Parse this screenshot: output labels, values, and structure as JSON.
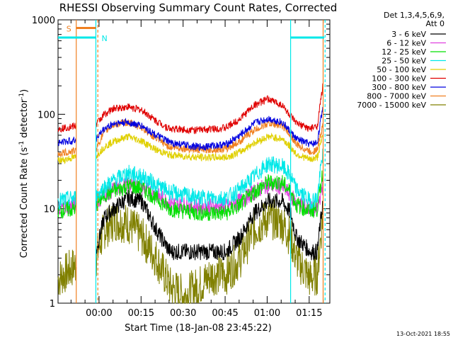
{
  "chart_data": {
    "type": "line",
    "title": "RHESSI Observing Summary Count Rates, Corrected",
    "xlabel": "Start Time (18-Jan-08 23:45:22)",
    "ylabel": "Corrected Count Rate (s",
    "ylabel_sup": "-1",
    "ylabel_tail": " detector",
    "ylabel_tail_sup": "-1",
    "ylabel_close": ")",
    "y_scale": "log",
    "ylim": [
      1,
      1000
    ],
    "y_ticks": [
      {
        "value": 1,
        "label": "1"
      },
      {
        "value": 10,
        "label": "10"
      },
      {
        "value": 100,
        "label": "100"
      },
      {
        "value": 1000,
        "label": "1000"
      }
    ],
    "x_unit": "minutes after 23:45:22",
    "xlim": [
      0,
      97
    ],
    "x_ticks": [
      {
        "value": 14.63,
        "label": "00:00"
      },
      {
        "value": 29.63,
        "label": "00:15"
      },
      {
        "value": 44.63,
        "label": "00:30"
      },
      {
        "value": 59.63,
        "label": "00:45"
      },
      {
        "value": 74.63,
        "label": "01:00"
      },
      {
        "value": 89.63,
        "label": "01:15"
      }
    ],
    "legend": {
      "header_line1": "Det 1,3,4,5,6,9,",
      "header_line2": "Att 0",
      "placement": "right"
    },
    "series": [
      {
        "name": "3 - 6 keV",
        "color": "#000000",
        "points": [
          [
            13.5,
            3.5
          ],
          [
            16.5,
            8
          ],
          [
            20,
            10
          ],
          [
            25,
            13
          ],
          [
            30,
            12
          ],
          [
            35,
            6
          ],
          [
            40,
            3.5
          ],
          [
            50,
            3.5
          ],
          [
            60,
            3.5
          ],
          [
            65,
            5
          ],
          [
            70,
            9
          ],
          [
            75,
            12
          ],
          [
            80,
            12
          ],
          [
            83,
            9
          ],
          [
            85,
            5
          ],
          [
            90,
            3.5
          ],
          [
            92.5,
            3.5
          ],
          [
            94.5,
            12
          ]
        ]
      },
      {
        "name": "6 - 12 keV",
        "color": "#e040e0",
        "points": [
          [
            0,
            10
          ],
          [
            6,
            11
          ],
          [
            13.5,
            11.5
          ],
          [
            16.5,
            14
          ],
          [
            20,
            16
          ],
          [
            25,
            18
          ],
          [
            30,
            17
          ],
          [
            35,
            14
          ],
          [
            40,
            11.5
          ],
          [
            50,
            10.5
          ],
          [
            60,
            10.5
          ],
          [
            65,
            12
          ],
          [
            70,
            15
          ],
          [
            75,
            18
          ],
          [
            80,
            17
          ],
          [
            83,
            14
          ],
          [
            85,
            11.5
          ],
          [
            90,
            10
          ],
          [
            92.5,
            10
          ],
          [
            94.5,
            18
          ]
        ]
      },
      {
        "name": "12 - 25 keV",
        "color": "#00e000",
        "points": [
          [
            0,
            9.5
          ],
          [
            6,
            10
          ],
          [
            13.5,
            11
          ],
          [
            16.5,
            14
          ],
          [
            20,
            15.5
          ],
          [
            25,
            17.5
          ],
          [
            30,
            16.5
          ],
          [
            35,
            13
          ],
          [
            40,
            10
          ],
          [
            50,
            9
          ],
          [
            60,
            9
          ],
          [
            65,
            11
          ],
          [
            70,
            15
          ],
          [
            75,
            19
          ],
          [
            80,
            19
          ],
          [
            83,
            15
          ],
          [
            85,
            11
          ],
          [
            90,
            9.5
          ],
          [
            92.5,
            10
          ],
          [
            94.5,
            25
          ]
        ]
      },
      {
        "name": "25 - 50 keV",
        "color": "#00e8e8",
        "points": [
          [
            0,
            12
          ],
          [
            6,
            13
          ],
          [
            13.5,
            13.5
          ],
          [
            16.5,
            17
          ],
          [
            20,
            20
          ],
          [
            25,
            24
          ],
          [
            30,
            22
          ],
          [
            35,
            18
          ],
          [
            40,
            15
          ],
          [
            50,
            13
          ],
          [
            60,
            13
          ],
          [
            65,
            16
          ],
          [
            70,
            22
          ],
          [
            75,
            30
          ],
          [
            80,
            28
          ],
          [
            83,
            22
          ],
          [
            85,
            16
          ],
          [
            90,
            12
          ],
          [
            92.5,
            13
          ],
          [
            94.5,
            40
          ]
        ]
      },
      {
        "name": "50 - 100 keV",
        "color": "#e0d000",
        "points": [
          [
            0,
            32
          ],
          [
            6,
            35
          ],
          [
            13.5,
            36
          ],
          [
            16.5,
            45
          ],
          [
            20,
            52
          ],
          [
            25,
            58
          ],
          [
            30,
            52
          ],
          [
            35,
            42
          ],
          [
            40,
            37
          ],
          [
            50,
            35
          ],
          [
            60,
            35
          ],
          [
            65,
            40
          ],
          [
            70,
            50
          ],
          [
            75,
            58
          ],
          [
            80,
            55
          ],
          [
            83,
            45
          ],
          [
            85,
            38
          ],
          [
            90,
            33
          ],
          [
            92.5,
            35
          ],
          [
            94.5,
            60
          ]
        ]
      },
      {
        "name": "100 - 300 keV",
        "color": "#e00000",
        "points": [
          [
            0,
            70
          ],
          [
            6,
            75
          ],
          [
            13.5,
            78
          ],
          [
            16.5,
            100
          ],
          [
            20,
            115
          ],
          [
            25,
            120
          ],
          [
            30,
            110
          ],
          [
            35,
            85
          ],
          [
            40,
            70
          ],
          [
            50,
            68
          ],
          [
            60,
            72
          ],
          [
            65,
            90
          ],
          [
            70,
            125
          ],
          [
            75,
            145
          ],
          [
            80,
            125
          ],
          [
            83,
            95
          ],
          [
            85,
            80
          ],
          [
            90,
            70
          ],
          [
            92.5,
            75
          ],
          [
            94.5,
            200
          ]
        ]
      },
      {
        "name": "300 - 800 keV",
        "color": "#0000e0",
        "points": [
          [
            0,
            50
          ],
          [
            6,
            53
          ],
          [
            13.5,
            55
          ],
          [
            16.5,
            70
          ],
          [
            20,
            80
          ],
          [
            25,
            82
          ],
          [
            30,
            75
          ],
          [
            35,
            60
          ],
          [
            40,
            50
          ],
          [
            50,
            45
          ],
          [
            60,
            48
          ],
          [
            65,
            60
          ],
          [
            70,
            80
          ],
          [
            75,
            90
          ],
          [
            80,
            82
          ],
          [
            83,
            65
          ],
          [
            85,
            55
          ],
          [
            90,
            48
          ],
          [
            92.5,
            50
          ],
          [
            94.5,
            120
          ]
        ]
      },
      {
        "name": "800 - 7000 keV",
        "color": "#f08020",
        "points": [
          [
            0,
            38
          ],
          [
            6,
            41
          ],
          [
            13.5,
            43
          ],
          [
            16.5,
            65
          ],
          [
            20,
            78
          ],
          [
            25,
            82
          ],
          [
            30,
            72
          ],
          [
            35,
            55
          ],
          [
            40,
            45
          ],
          [
            50,
            42
          ],
          [
            60,
            43
          ],
          [
            65,
            52
          ],
          [
            70,
            68
          ],
          [
            75,
            80
          ],
          [
            80,
            76
          ],
          [
            83,
            60
          ],
          [
            85,
            48
          ],
          [
            90,
            40
          ],
          [
            92.5,
            42
          ],
          [
            94.5,
            80
          ]
        ]
      },
      {
        "name": "7000 - 15000 keV",
        "color": "#808000",
        "points": [
          [
            0,
            1.8
          ],
          [
            6,
            2.5
          ],
          [
            13.5,
            3
          ],
          [
            16.5,
            6
          ],
          [
            20,
            7.5
          ],
          [
            25,
            7
          ],
          [
            30,
            5
          ],
          [
            35,
            3
          ],
          [
            40,
            1.5
          ],
          [
            45,
            1.2
          ],
          [
            50,
            1.5
          ],
          [
            55,
            2
          ],
          [
            60,
            2
          ],
          [
            65,
            3
          ],
          [
            70,
            6
          ],
          [
            75,
            8
          ],
          [
            80,
            7
          ],
          [
            83,
            5
          ],
          [
            85,
            3
          ],
          [
            90,
            1.8
          ],
          [
            92.5,
            2
          ],
          [
            94.5,
            9
          ]
        ]
      }
    ],
    "attenuator_markers": [
      {
        "label": "S",
        "color": "#f08020",
        "x_start": 6.5,
        "x_end": 13.5,
        "level": 820
      },
      {
        "label": "N",
        "color": "#00e8e8",
        "x_start": 0,
        "x_end": 13.5,
        "level": 650
      },
      {
        "label": "",
        "color": "#00e8e8",
        "x_start": 83,
        "x_end": 95,
        "level": 650
      }
    ],
    "vertical_lines": [
      {
        "x": 6.5,
        "color": "#f08020",
        "dashed": false
      },
      {
        "x": 13.5,
        "color": "#00e8e8",
        "dashed": false
      },
      {
        "x": 14.2,
        "color": "#f08020",
        "dashed": true
      },
      {
        "x": 83,
        "color": "#00e8e8",
        "dashed": false
      },
      {
        "x": 94.6,
        "color": "#f08020",
        "dashed": false
      },
      {
        "x": 95.3,
        "color": "#00e8e8",
        "dashed": true
      }
    ],
    "gaps": [
      [
        6.5,
        13.5
      ],
      [
        83.0,
        83.0
      ]
    ],
    "footer_date": "13-Oct-2021 18:55"
  }
}
